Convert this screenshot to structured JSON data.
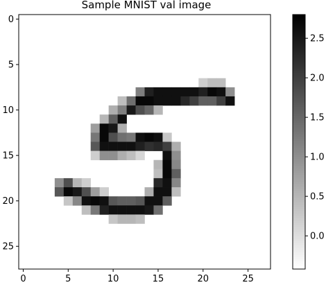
{
  "chart_data": [
    {
      "type": "heatmap",
      "title": "Sample MNIST val image",
      "colormap": "gray_r",
      "grid": false,
      "x_ticks": [
        0,
        5,
        10,
        15,
        20,
        25
      ],
      "x_tick_labels": [
        "0",
        "5",
        "10",
        "15",
        "20",
        "25"
      ],
      "y_ticks": [
        0,
        5,
        10,
        15,
        20,
        25
      ],
      "y_tick_labels": [
        "0",
        "5",
        "10",
        "15",
        "20",
        "25"
      ],
      "xlim": [
        -0.5,
        27.5
      ],
      "ylim": [
        27.5,
        -0.5
      ],
      "background_value": -0.42,
      "pixels": [
        {
          "row": 7,
          "col": 20,
          "v": 0.2
        },
        {
          "row": 7,
          "col": 21,
          "v": 0.4
        },
        {
          "row": 7,
          "col": 22,
          "v": 0.4
        },
        {
          "row": 8,
          "col": 13,
          "v": 1.2
        },
        {
          "row": 8,
          "col": 14,
          "v": 2.4
        },
        {
          "row": 8,
          "col": 15,
          "v": 2.6
        },
        {
          "row": 8,
          "col": 16,
          "v": 2.6
        },
        {
          "row": 8,
          "col": 17,
          "v": 2.6
        },
        {
          "row": 8,
          "col": 18,
          "v": 2.6
        },
        {
          "row": 8,
          "col": 19,
          "v": 2.6
        },
        {
          "row": 8,
          "col": 20,
          "v": 2.4
        },
        {
          "row": 8,
          "col": 21,
          "v": 2.7
        },
        {
          "row": 8,
          "col": 22,
          "v": 2.6
        },
        {
          "row": 8,
          "col": 23,
          "v": 1.0
        },
        {
          "row": 9,
          "col": 11,
          "v": 0.4
        },
        {
          "row": 9,
          "col": 12,
          "v": 1.4
        },
        {
          "row": 9,
          "col": 13,
          "v": 2.7
        },
        {
          "row": 9,
          "col": 14,
          "v": 2.7
        },
        {
          "row": 9,
          "col": 15,
          "v": 2.6
        },
        {
          "row": 9,
          "col": 16,
          "v": 2.6
        },
        {
          "row": 9,
          "col": 17,
          "v": 2.6
        },
        {
          "row": 9,
          "col": 18,
          "v": 2.3
        },
        {
          "row": 9,
          "col": 19,
          "v": 2.0
        },
        {
          "row": 9,
          "col": 20,
          "v": 1.6
        },
        {
          "row": 9,
          "col": 21,
          "v": 1.6
        },
        {
          "row": 9,
          "col": 22,
          "v": 2.0
        },
        {
          "row": 9,
          "col": 23,
          "v": 2.6
        },
        {
          "row": 10,
          "col": 10,
          "v": 0.6
        },
        {
          "row": 10,
          "col": 11,
          "v": 1.2
        },
        {
          "row": 10,
          "col": 12,
          "v": 2.5
        },
        {
          "row": 10,
          "col": 13,
          "v": 1.8
        },
        {
          "row": 10,
          "col": 14,
          "v": 1.5
        },
        {
          "row": 10,
          "col": 15,
          "v": 0.5
        },
        {
          "row": 11,
          "col": 9,
          "v": 0.5
        },
        {
          "row": 11,
          "col": 10,
          "v": 1.6
        },
        {
          "row": 11,
          "col": 11,
          "v": 2.6
        },
        {
          "row": 12,
          "col": 8,
          "v": 0.8
        },
        {
          "row": 12,
          "col": 9,
          "v": 2.7
        },
        {
          "row": 12,
          "col": 10,
          "v": 2.5
        },
        {
          "row": 12,
          "col": 11,
          "v": 0.6
        },
        {
          "row": 13,
          "col": 8,
          "v": 1.3
        },
        {
          "row": 13,
          "col": 9,
          "v": 2.7
        },
        {
          "row": 13,
          "col": 10,
          "v": 1.8
        },
        {
          "row": 13,
          "col": 11,
          "v": 1.4
        },
        {
          "row": 13,
          "col": 12,
          "v": 1.3
        },
        {
          "row": 13,
          "col": 13,
          "v": 2.6
        },
        {
          "row": 13,
          "col": 14,
          "v": 2.7
        },
        {
          "row": 13,
          "col": 15,
          "v": 2.6
        },
        {
          "row": 13,
          "col": 16,
          "v": 0.3
        },
        {
          "row": 14,
          "col": 8,
          "v": 1.7
        },
        {
          "row": 14,
          "col": 9,
          "v": 2.6
        },
        {
          "row": 14,
          "col": 10,
          "v": 2.6
        },
        {
          "row": 14,
          "col": 11,
          "v": 2.6
        },
        {
          "row": 14,
          "col": 12,
          "v": 2.6
        },
        {
          "row": 14,
          "col": 13,
          "v": 2.4
        },
        {
          "row": 14,
          "col": 14,
          "v": 2.2
        },
        {
          "row": 14,
          "col": 15,
          "v": 2.3
        },
        {
          "row": 14,
          "col": 16,
          "v": 2.0
        },
        {
          "row": 14,
          "col": 17,
          "v": 0.6
        },
        {
          "row": 15,
          "col": 8,
          "v": 0.2
        },
        {
          "row": 15,
          "col": 9,
          "v": 1.0
        },
        {
          "row": 15,
          "col": 10,
          "v": 1.0
        },
        {
          "row": 15,
          "col": 11,
          "v": 0.6
        },
        {
          "row": 15,
          "col": 12,
          "v": 0.4
        },
        {
          "row": 15,
          "col": 13,
          "v": 0.1
        },
        {
          "row": 15,
          "col": 16,
          "v": 2.6
        },
        {
          "row": 15,
          "col": 17,
          "v": 1.0
        },
        {
          "row": 16,
          "col": 15,
          "v": 0.5
        },
        {
          "row": 16,
          "col": 16,
          "v": 2.7
        },
        {
          "row": 16,
          "col": 17,
          "v": 1.1
        },
        {
          "row": 17,
          "col": 15,
          "v": 0.4
        },
        {
          "row": 17,
          "col": 16,
          "v": 2.7
        },
        {
          "row": 17,
          "col": 17,
          "v": 1.6
        },
        {
          "row": 18,
          "col": 4,
          "v": 1.0
        },
        {
          "row": 18,
          "col": 5,
          "v": 1.8
        },
        {
          "row": 18,
          "col": 6,
          "v": 0.5
        },
        {
          "row": 18,
          "col": 7,
          "v": 0.2
        },
        {
          "row": 18,
          "col": 15,
          "v": 2.3
        },
        {
          "row": 18,
          "col": 16,
          "v": 2.6
        },
        {
          "row": 18,
          "col": 17,
          "v": 1.1
        },
        {
          "row": 19,
          "col": 4,
          "v": 1.7
        },
        {
          "row": 19,
          "col": 5,
          "v": 2.7
        },
        {
          "row": 19,
          "col": 6,
          "v": 2.5
        },
        {
          "row": 19,
          "col": 7,
          "v": 1.8
        },
        {
          "row": 19,
          "col": 8,
          "v": 0.8
        },
        {
          "row": 19,
          "col": 9,
          "v": 0.2
        },
        {
          "row": 19,
          "col": 14,
          "v": 0.6
        },
        {
          "row": 19,
          "col": 15,
          "v": 2.6
        },
        {
          "row": 19,
          "col": 16,
          "v": 2.6
        },
        {
          "row": 19,
          "col": 17,
          "v": 0.4
        },
        {
          "row": 20,
          "col": 5,
          "v": 0.3
        },
        {
          "row": 20,
          "col": 6,
          "v": 1.1
        },
        {
          "row": 20,
          "col": 7,
          "v": 2.6
        },
        {
          "row": 20,
          "col": 8,
          "v": 2.7
        },
        {
          "row": 20,
          "col": 9,
          "v": 2.6
        },
        {
          "row": 20,
          "col": 10,
          "v": 1.7
        },
        {
          "row": 20,
          "col": 11,
          "v": 1.6
        },
        {
          "row": 20,
          "col": 12,
          "v": 1.6
        },
        {
          "row": 20,
          "col": 13,
          "v": 1.7
        },
        {
          "row": 20,
          "col": 14,
          "v": 2.6
        },
        {
          "row": 20,
          "col": 15,
          "v": 2.6
        },
        {
          "row": 20,
          "col": 16,
          "v": 1.6
        },
        {
          "row": 21,
          "col": 7,
          "v": 0.4
        },
        {
          "row": 21,
          "col": 8,
          "v": 1.3
        },
        {
          "row": 21,
          "col": 9,
          "v": 2.4
        },
        {
          "row": 21,
          "col": 10,
          "v": 2.6
        },
        {
          "row": 21,
          "col": 11,
          "v": 2.6
        },
        {
          "row": 21,
          "col": 12,
          "v": 2.6
        },
        {
          "row": 21,
          "col": 13,
          "v": 2.6
        },
        {
          "row": 21,
          "col": 14,
          "v": 2.5
        },
        {
          "row": 21,
          "col": 15,
          "v": 1.4
        },
        {
          "row": 22,
          "col": 10,
          "v": 0.3
        },
        {
          "row": 22,
          "col": 11,
          "v": 0.5
        },
        {
          "row": 22,
          "col": 12,
          "v": 0.5
        },
        {
          "row": 22,
          "col": 13,
          "v": 0.4
        }
      ]
    },
    {
      "type": "colorbar",
      "colormap": "gray_r",
      "range": [
        -0.42,
        2.8
      ],
      "ticks": [
        0.0,
        0.5,
        1.0,
        1.5,
        2.0,
        2.5
      ],
      "tick_labels": [
        "0.0",
        "0.5",
        "1.0",
        "1.5",
        "2.0",
        "2.5"
      ]
    }
  ]
}
